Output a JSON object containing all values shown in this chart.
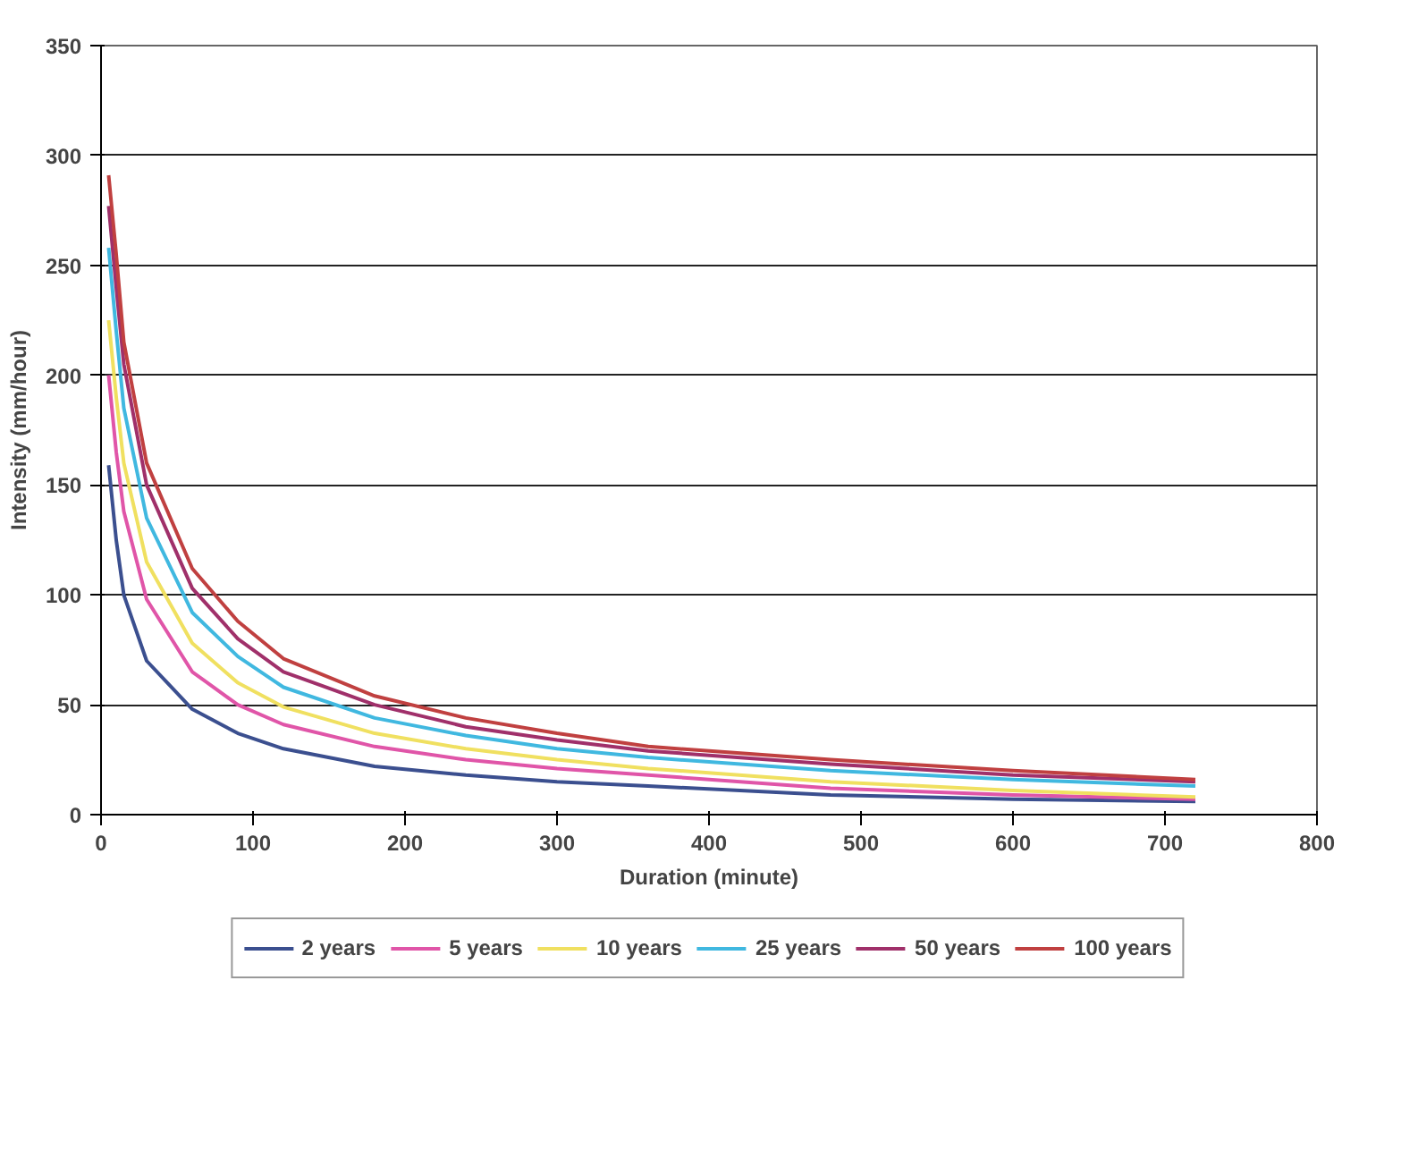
{
  "chart_data": {
    "type": "line",
    "xlabel": "Duration (minute)",
    "ylabel": "Intensity (mm/hour)",
    "x": [
      5,
      10,
      15,
      30,
      60,
      90,
      120,
      180,
      240,
      300,
      360,
      480,
      600,
      720
    ],
    "series": [
      {
        "name": "2 years",
        "color": "#3b4f8f",
        "values": [
          159,
          125,
          100,
          70,
          48,
          37,
          30,
          22,
          18,
          15,
          13,
          9,
          7,
          6
        ]
      },
      {
        "name": "5 years",
        "color": "#e055a8",
        "values": [
          200,
          165,
          138,
          98,
          65,
          50,
          41,
          31,
          25,
          21,
          18,
          12,
          9,
          7
        ]
      },
      {
        "name": "10 years",
        "color": "#f0e060",
        "values": [
          225,
          190,
          160,
          115,
          78,
          60,
          49,
          37,
          30,
          25,
          21,
          15,
          11,
          8
        ]
      },
      {
        "name": "25 years",
        "color": "#40b8e0",
        "values": [
          258,
          220,
          185,
          135,
          92,
          72,
          58,
          44,
          36,
          30,
          26,
          20,
          16,
          13
        ]
      },
      {
        "name": "50 years",
        "color": "#a0306a",
        "values": [
          277,
          240,
          205,
          150,
          103,
          80,
          65,
          50,
          40,
          34,
          29,
          23,
          18,
          15
        ]
      },
      {
        "name": "100 years",
        "color": "#c04040",
        "values": [
          291,
          255,
          215,
          160,
          112,
          88,
          71,
          54,
          44,
          37,
          31,
          25,
          20,
          16
        ]
      }
    ],
    "xlim": [
      0,
      800
    ],
    "xticks": [
      0,
      100,
      200,
      300,
      400,
      500,
      600,
      700,
      800
    ],
    "ylim": [
      0,
      350
    ],
    "yticks": [
      0,
      50,
      100,
      150,
      200,
      250,
      300,
      350
    ],
    "grid": "y",
    "legend": "bottom",
    "marker": "none",
    "line_style": "solid"
  }
}
